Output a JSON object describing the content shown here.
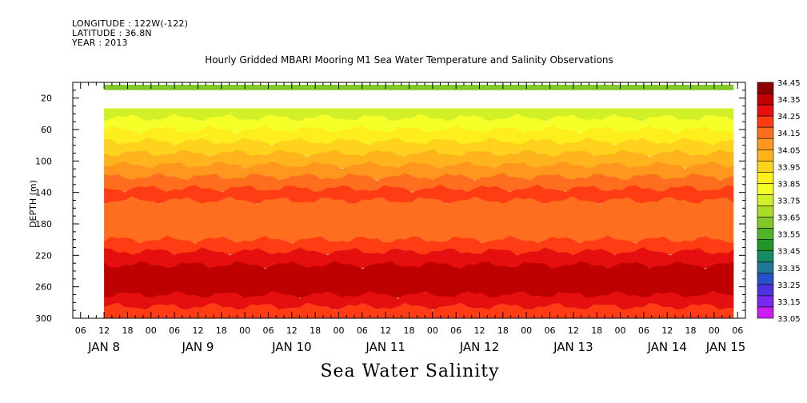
{
  "header": {
    "longitude": "LONGITUDE : 122W(-122)",
    "latitude": "LATITUDE : 36.8N",
    "year": "YEAR : 2013"
  },
  "chart_data": {
    "type": "heatmap",
    "title": "Hourly Gridded MBARI Mooring M1 Sea Water Temperature and Salinity Observations",
    "subtitle": "Sea Water Salinity",
    "ylabel": "DEPTH (m)",
    "xlabel": "",
    "y_axis": {
      "ylim": [
        300,
        0
      ],
      "ticks": [
        20,
        60,
        100,
        140,
        180,
        220,
        260,
        300
      ],
      "direction": "depth increases downward"
    },
    "x_axis": {
      "hour_ticks": [
        {
          "t": -6,
          "label": "06"
        },
        {
          "t": 0,
          "label": "12"
        },
        {
          "t": 6,
          "label": "18"
        },
        {
          "t": 12,
          "label": "00"
        },
        {
          "t": 18,
          "label": "06"
        },
        {
          "t": 24,
          "label": "12"
        },
        {
          "t": 30,
          "label": "18"
        },
        {
          "t": 36,
          "label": "00"
        },
        {
          "t": 42,
          "label": "06"
        },
        {
          "t": 48,
          "label": "12"
        },
        {
          "t": 54,
          "label": "18"
        },
        {
          "t": 60,
          "label": "00"
        },
        {
          "t": 66,
          "label": "06"
        },
        {
          "t": 72,
          "label": "12"
        },
        {
          "t": 78,
          "label": "18"
        },
        {
          "t": 84,
          "label": "00"
        },
        {
          "t": 90,
          "label": "06"
        },
        {
          "t": 96,
          "label": "12"
        },
        {
          "t": 102,
          "label": "18"
        },
        {
          "t": 108,
          "label": "00"
        },
        {
          "t": 114,
          "label": "06"
        },
        {
          "t": 120,
          "label": "12"
        },
        {
          "t": 126,
          "label": "18"
        },
        {
          "t": 132,
          "label": "00"
        },
        {
          "t": 138,
          "label": "06"
        },
        {
          "t": 144,
          "label": "12"
        },
        {
          "t": 150,
          "label": "18"
        },
        {
          "t": 156,
          "label": "00"
        },
        {
          "t": 162,
          "label": "06"
        }
      ],
      "date_labels": [
        {
          "t": 0,
          "label": "JAN  8"
        },
        {
          "t": 24,
          "label": "JAN  9"
        },
        {
          "t": 48,
          "label": "JAN 10"
        },
        {
          "t": 72,
          "label": "JAN 11"
        },
        {
          "t": 96,
          "label": "JAN 12"
        },
        {
          "t": 120,
          "label": "JAN 13"
        },
        {
          "t": 144,
          "label": "JAN 14"
        },
        {
          "t": 159,
          "label": "JAN 15"
        }
      ],
      "xlim": [
        -8,
        164
      ],
      "data_start": 0,
      "data_end": 161
    },
    "colorbar": {
      "levels": [
        {
          "value": "34.45",
          "color": "#8c0000"
        },
        {
          "value": "34.35",
          "color": "#be0000"
        },
        {
          "value": "34.25",
          "color": "#e60f0f"
        },
        {
          "value": "34.15",
          "color": "#ff3c14"
        },
        {
          "value": "34.05",
          "color": "#ff6e1e"
        },
        {
          "value": "33.95",
          "color": "#ff961e"
        },
        {
          "value": "33.85",
          "color": "#ffb41e"
        },
        {
          "value": "33.75",
          "color": "#ffd21e"
        },
        {
          "value": "33.65",
          "color": "#ffee1e"
        },
        {
          "value": "33.55",
          "color": "#f5ff28"
        },
        {
          "value": "33.45",
          "color": "#d2f028"
        },
        {
          "value": "33.35",
          "color": "#aadc28"
        },
        {
          "value": "33.25",
          "color": "#82c828"
        },
        {
          "value": "33.15",
          "color": "#50b428"
        },
        {
          "value": "33.05",
          "color": "#1e9628"
        },
        {
          "value": "",
          "color": "#148c64"
        },
        {
          "value": "",
          "color": "#1e7896"
        },
        {
          "value": "",
          "color": "#2850c8"
        },
        {
          "value": "",
          "color": "#4b32dc"
        },
        {
          "value": "",
          "color": "#7828f0"
        },
        {
          "value": "",
          "color": "#c81ef0"
        }
      ]
    },
    "surface_band": {
      "depth_range": [
        3,
        10
      ],
      "value": "33.25"
    },
    "empty_band": {
      "depth_range": [
        10,
        33
      ]
    },
    "depth_layers": [
      {
        "depth": 33,
        "value": "33.45"
      },
      {
        "depth": 45,
        "value": "33.55"
      },
      {
        "depth": 60,
        "value": "33.65"
      },
      {
        "depth": 75,
        "value": "33.75"
      },
      {
        "depth": 90,
        "value": "33.85"
      },
      {
        "depth": 105,
        "value": "33.95"
      },
      {
        "depth": 120,
        "value": "34.05"
      },
      {
        "depth": 135,
        "value": "34.15"
      },
      {
        "depth": 150,
        "value": "34.05"
      },
      {
        "depth": 200,
        "value": "34.15"
      },
      {
        "depth": 215,
        "value": "34.25"
      },
      {
        "depth": 232,
        "value": "34.35"
      },
      {
        "depth": 270,
        "value": "34.25"
      },
      {
        "depth": 285,
        "value": "34.15"
      },
      {
        "depth": 300,
        "value": "34.15"
      }
    ]
  }
}
